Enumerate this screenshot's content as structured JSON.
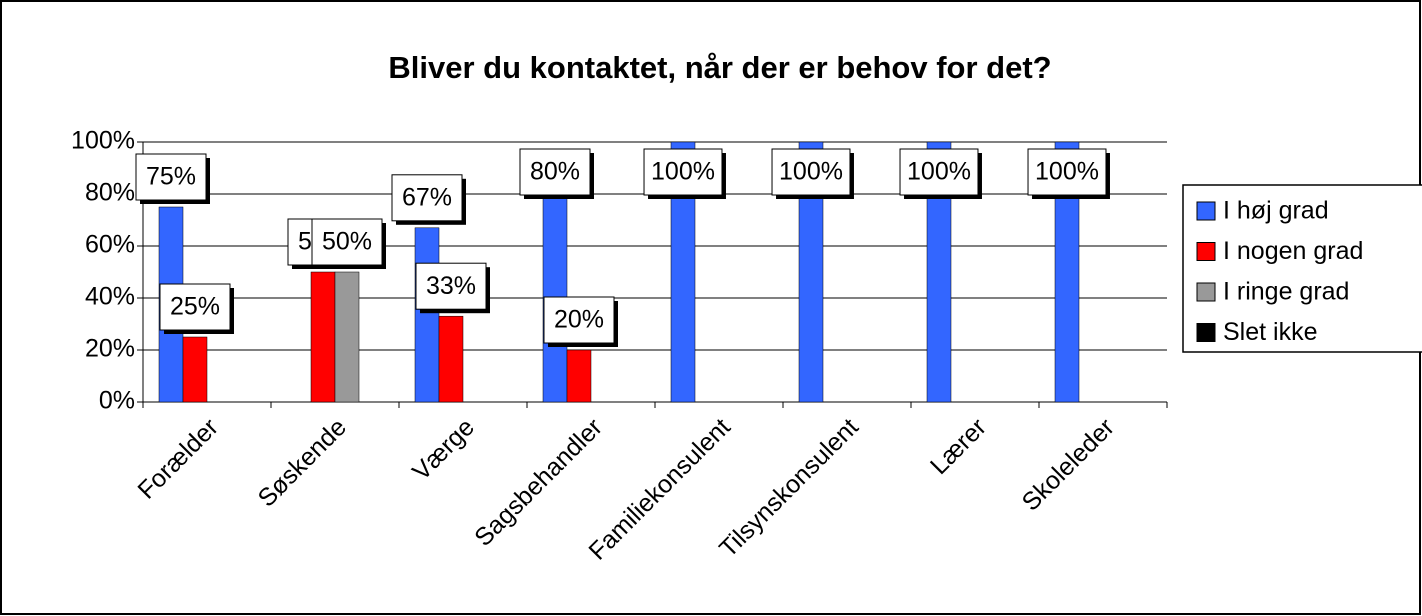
{
  "chart_data": {
    "type": "bar",
    "title": "Bliver du kontaktet, når der er behov for det?",
    "categories": [
      "Forælder",
      "Søskende",
      "Værge",
      "Sagsbehandler",
      "Familiekonsulent",
      "Tilsynskonsulent",
      "Lærer",
      "Skoleleder"
    ],
    "series": [
      {
        "name": "I høj grad",
        "color": "#3366ff",
        "values": [
          75,
          0,
          67,
          80,
          100,
          100,
          100,
          100
        ],
        "value_labels": [
          "75%",
          null,
          "67%",
          "80%",
          "100%",
          "100%",
          "100%",
          "100%"
        ]
      },
      {
        "name": "I nogen grad",
        "color": "#ff0000",
        "values": [
          25,
          50,
          33,
          20,
          0,
          0,
          0,
          0
        ],
        "value_labels": [
          "25%",
          "50%",
          "33%",
          "20%",
          null,
          null,
          null,
          null
        ]
      },
      {
        "name": "I ringe grad",
        "color": "#999999",
        "values": [
          0,
          50,
          0,
          0,
          0,
          0,
          0,
          0
        ],
        "value_labels": [
          null,
          "50%",
          null,
          null,
          null,
          null,
          null,
          null
        ]
      },
      {
        "name": "Slet ikke",
        "color": "#000000",
        "values": [
          0,
          0,
          0,
          0,
          0,
          0,
          0,
          0
        ]
      }
    ],
    "ylim": [
      0,
      100
    ],
    "yticks": [
      {
        "value": 0,
        "label": "0%"
      },
      {
        "value": 20,
        "label": "20%"
      },
      {
        "value": 40,
        "label": "40%"
      },
      {
        "value": 60,
        "label": "60%"
      },
      {
        "value": 80,
        "label": "80%"
      },
      {
        "value": 100,
        "label": "100%"
      }
    ],
    "grid": true,
    "legend": "right"
  }
}
